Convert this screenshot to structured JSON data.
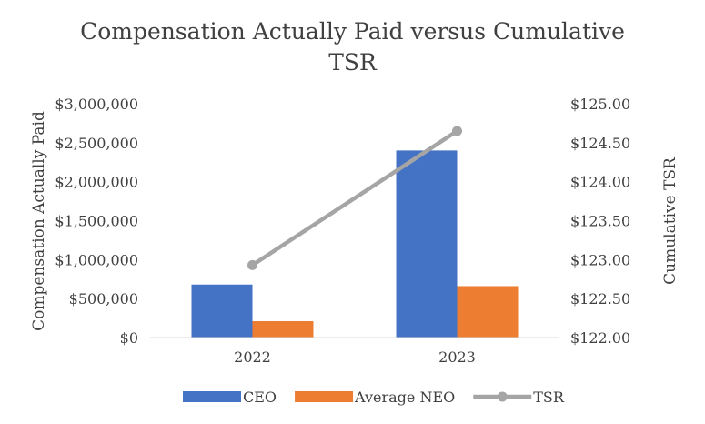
{
  "chart_data": {
    "type": "bar",
    "title_line1": "Compensation Actually Paid versus Cumulative",
    "title_line2": "TSR",
    "categories": [
      "2022",
      "2023"
    ],
    "series": [
      {
        "name": "CEO",
        "type": "bar",
        "axis": "left",
        "values": [
          680000,
          2400000
        ],
        "color": "#4472C4"
      },
      {
        "name": "Average NEO",
        "type": "bar",
        "axis": "left",
        "values": [
          210000,
          660000
        ],
        "color": "#ED7D31"
      },
      {
        "name": "TSR",
        "type": "line",
        "axis": "right",
        "values": [
          122.93,
          124.65
        ],
        "color": "#A5A5A5"
      }
    ],
    "ylabel": "Compensation Actually Paid",
    "y2label": "Cumulative TSR",
    "ylim": [
      0,
      3000000
    ],
    "y2lim": [
      122,
      125
    ],
    "yticks": [
      "$0",
      "$500,000",
      "$1,000,000",
      "$1,500,000",
      "$2,000,000",
      "$2,500,000",
      "$3,000,000"
    ],
    "y2ticks": [
      "$122.00",
      "$122.50",
      "$123.00",
      "$123.50",
      "$124.00",
      "$124.50",
      "$125.00"
    ],
    "legend_position": "bottom",
    "grid": false
  }
}
